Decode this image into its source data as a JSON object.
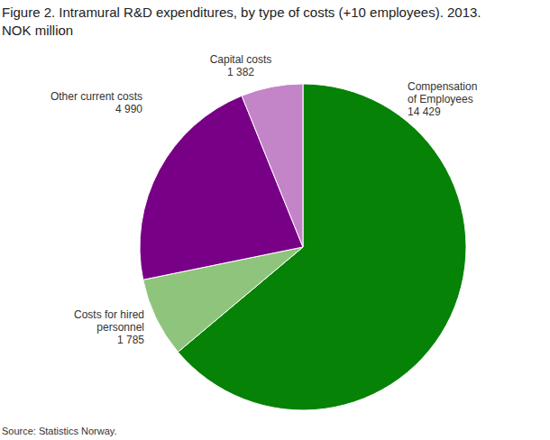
{
  "chart_data": {
    "type": "pie",
    "title": "Figure 2. Intramural R&D expenditures, by type of costs (+10 employees). 2013.",
    "subtitle": "NOK million",
    "source": "Source: Statistics Norway.",
    "categories": [
      "Compensation of Employees",
      "Costs for hired personnel",
      "Other current costs",
      "Capital costs"
    ],
    "values": [
      14429,
      1785,
      4990,
      1382
    ],
    "value_labels": [
      "14 429",
      "1 785",
      "4 990",
      "1 382"
    ],
    "colors": [
      "#068206",
      "#8fc47c",
      "#780087",
      "#c484c8"
    ],
    "data_labels": true
  }
}
